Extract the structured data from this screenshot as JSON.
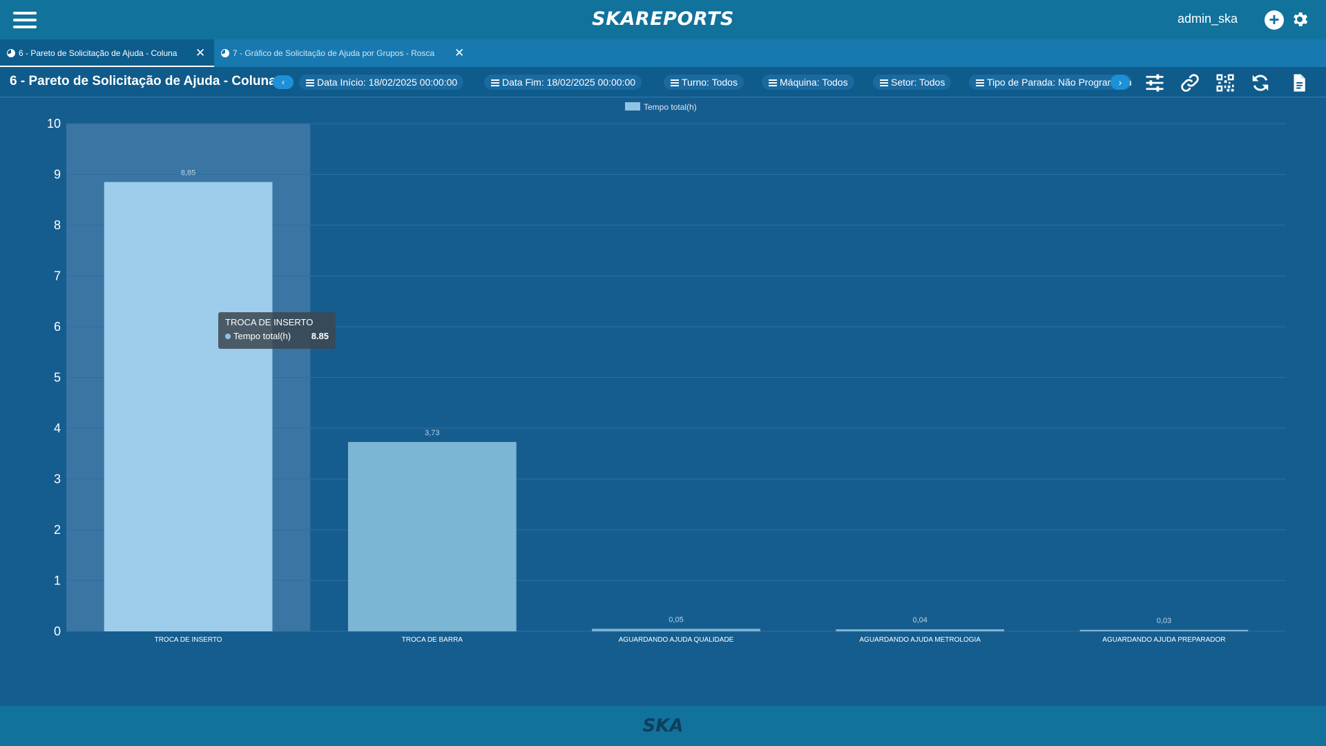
{
  "header": {
    "brand": "SKAREPORTS",
    "user": "admin_ska"
  },
  "tabs": [
    {
      "label": "6 - Pareto de Solicitação de Ajuda - Coluna",
      "active": true
    },
    {
      "label": "7 - Gráfico de Solicitação de Ajuda por Grupos - Rosca",
      "active": false
    }
  ],
  "report": {
    "title": "6 - Pareto de Solicitação de Ajuda - Coluna"
  },
  "filters": {
    "data_inicio": "Data Início: 18/02/2025 00:00:00",
    "data_fim": "Data Fim: 18/02/2025 00:00:00",
    "turno": "Turno: Todos",
    "maquina": "Máquina: Todos",
    "setor": "Setor: Todos",
    "tipo_parada": "Tipo de Parada: Não Programada"
  },
  "icons": {
    "filters": "sliders-icon",
    "link": "link-icon",
    "qr": "qr-code-icon",
    "refresh": "refresh-icon",
    "document": "document-icon"
  },
  "tooltip": {
    "title": "TROCA DE INSERTO",
    "series": "Tempo total(h)",
    "value": "8.85"
  },
  "chart_data": {
    "type": "bar",
    "categories": [
      "TROCA DE INSERTO",
      "TROCA DE BARRA",
      "AGUARDANDO AJUDA QUALIDADE",
      "AGUARDANDO AJUDA METROLOGIA",
      "AGUARDANDO AJUDA PREPARADOR"
    ],
    "series": [
      {
        "name": "Tempo total(h)",
        "values": [
          8.85,
          3.73,
          0.05,
          0.04,
          0.03
        ]
      }
    ],
    "data_labels": [
      "8,85",
      "3,73",
      "0,05",
      "0,04",
      "0,03"
    ],
    "y_ticks": [
      0,
      1,
      2,
      3,
      4,
      5,
      6,
      7,
      8,
      9,
      10
    ],
    "ylim": [
      0,
      10
    ],
    "legend_position": "top-center",
    "grid": true,
    "highlighted_category": "TROCA DE INSERTO",
    "colors": {
      "bar": "#7db5d5",
      "bar_highlight": "#9dcdea",
      "hover_band": "#3a75a3",
      "grid": "#2c6f9f"
    }
  },
  "footer": {
    "logo": "SKA"
  }
}
